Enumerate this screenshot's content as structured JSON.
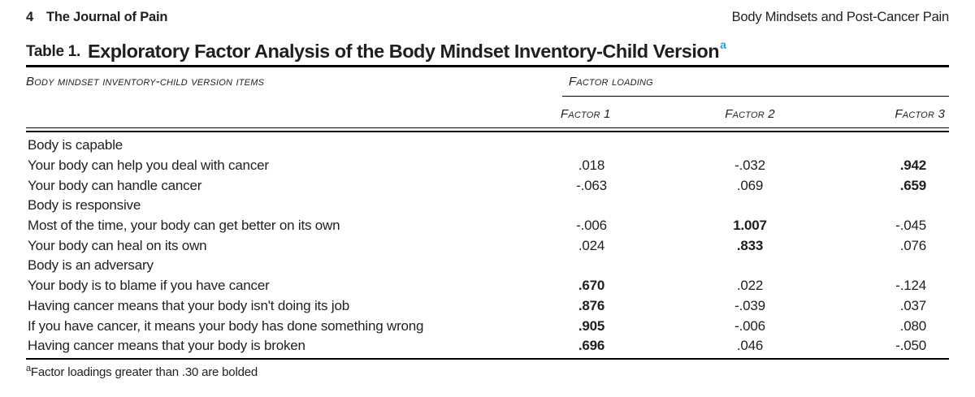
{
  "masthead": {
    "page_number": "4",
    "journal_title": "The Journal of Pain",
    "running_head": "Body Mindsets and Post-Cancer Pain"
  },
  "table": {
    "label": "Table 1.",
    "title": "Exploratory Factor Analysis of the Body Mindset Inventory-Child Version",
    "title_footnote_marker": "a",
    "items_column_header": "Body mindset inventory-child version items",
    "spanner_header": "Factor loading",
    "factor_columns": [
      "Factor 1",
      "Factor 2",
      "Factor 3"
    ],
    "rows": [
      {
        "type": "group",
        "label": "Body is capable"
      },
      {
        "type": "item",
        "label": "Your body can help you deal with cancer",
        "values": [
          ".018",
          "-.032",
          ".942"
        ],
        "bold": [
          false,
          false,
          true
        ]
      },
      {
        "type": "item",
        "label": "Your body can handle cancer",
        "values": [
          "-.063",
          ".069",
          ".659"
        ],
        "bold": [
          false,
          false,
          true
        ]
      },
      {
        "type": "group",
        "label": "Body is responsive"
      },
      {
        "type": "item",
        "label": "Most of the time, your body can get better on its own",
        "values": [
          "-.006",
          "1.007",
          "-.045"
        ],
        "bold": [
          false,
          true,
          false
        ]
      },
      {
        "type": "item",
        "label": "Your body can heal on its own",
        "values": [
          ".024",
          ".833",
          ".076"
        ],
        "bold": [
          false,
          true,
          false
        ]
      },
      {
        "type": "group",
        "label": "Body is an adversary"
      },
      {
        "type": "item",
        "label": "Your body is to blame if you have cancer",
        "values": [
          ".670",
          ".022",
          "-.124"
        ],
        "bold": [
          true,
          false,
          false
        ]
      },
      {
        "type": "item",
        "label": "Having cancer means that your body isn't doing its job",
        "values": [
          ".876",
          "-.039",
          ".037"
        ],
        "bold": [
          true,
          false,
          false
        ]
      },
      {
        "type": "item",
        "label": "If you have cancer, it means your body has done something wrong",
        "values": [
          ".905",
          "-.006",
          ".080"
        ],
        "bold": [
          true,
          false,
          false
        ]
      },
      {
        "type": "item",
        "label": "Having cancer means that your body is broken",
        "values": [
          ".696",
          ".046",
          "-.050"
        ],
        "bold": [
          true,
          false,
          false
        ]
      }
    ],
    "footnote_marker": "a",
    "footnote_text": "Factor loadings greater than .30 are bolded"
  },
  "colors": {
    "text": "#1f1f1f",
    "accent_blue": "#2e9dd4",
    "rule": "#000000",
    "background": "#ffffff"
  }
}
